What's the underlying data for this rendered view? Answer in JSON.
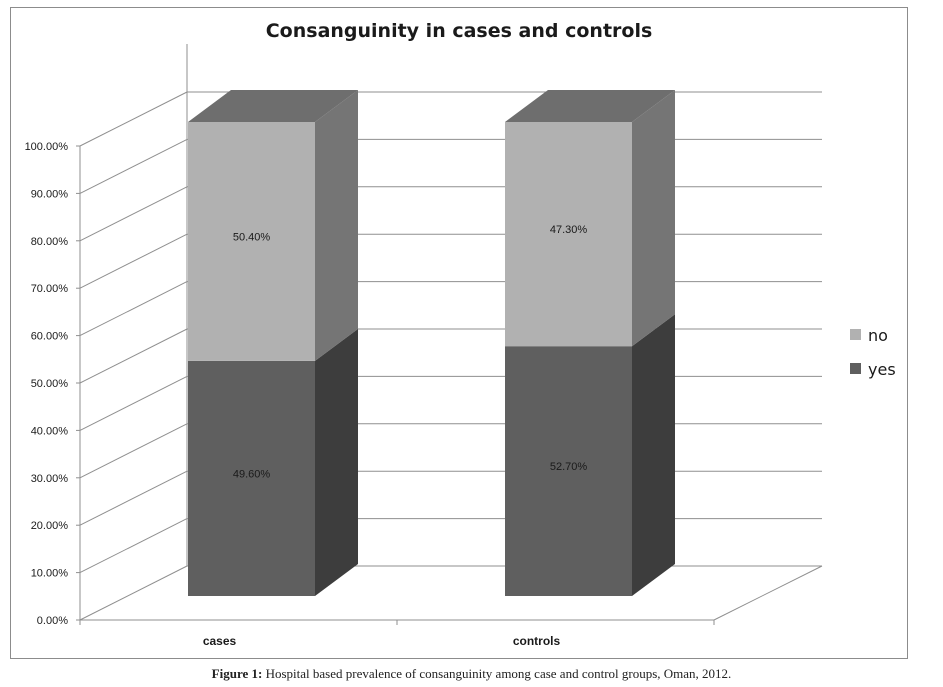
{
  "chart_data": {
    "type": "bar",
    "stacked": true,
    "three_d": true,
    "title": "Consanguinity in cases and controls",
    "categories": [
      "cases",
      "controls"
    ],
    "series": [
      {
        "name": "yes",
        "values": [
          49.6,
          52.7
        ],
        "labels": [
          "49.60%",
          "52.70%"
        ],
        "color": "#5f5f5f"
      },
      {
        "name": "no",
        "values": [
          50.4,
          47.3
        ],
        "labels": [
          "50.40%",
          "47.30%"
        ],
        "color": "#b1b1b1"
      }
    ],
    "yticks": [
      "0.00%",
      "10.00%",
      "20.00%",
      "30.00%",
      "40.00%",
      "50.00%",
      "60.00%",
      "70.00%",
      "80.00%",
      "90.00%",
      "100.00%"
    ],
    "ylim": [
      0,
      100
    ],
    "grid": true,
    "legend_position": "right"
  },
  "caption": {
    "label": "Figure 1:",
    "text": " Hospital based prevalence of consanguinity among case and control groups, Oman, 2012."
  }
}
